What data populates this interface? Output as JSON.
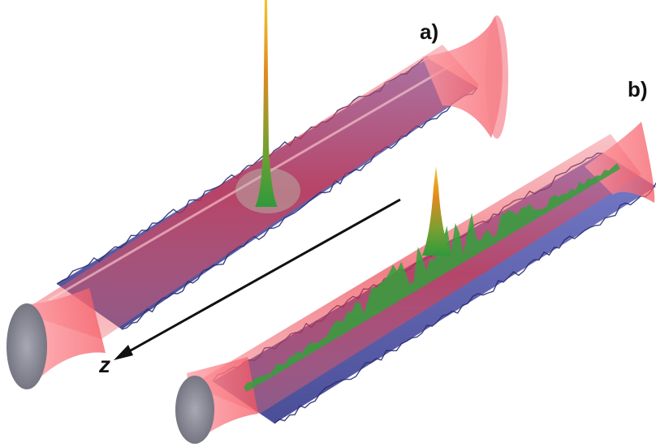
{
  "labels": {
    "panel_a": "a)",
    "panel_b": "b)",
    "axis": "z"
  },
  "colors": {
    "surface": "#4a4fa6",
    "beam": "#e8303d",
    "peak_top": "#d9a21a",
    "peak_bottom": "#3c9b3a",
    "background": "#ffffff"
  }
}
